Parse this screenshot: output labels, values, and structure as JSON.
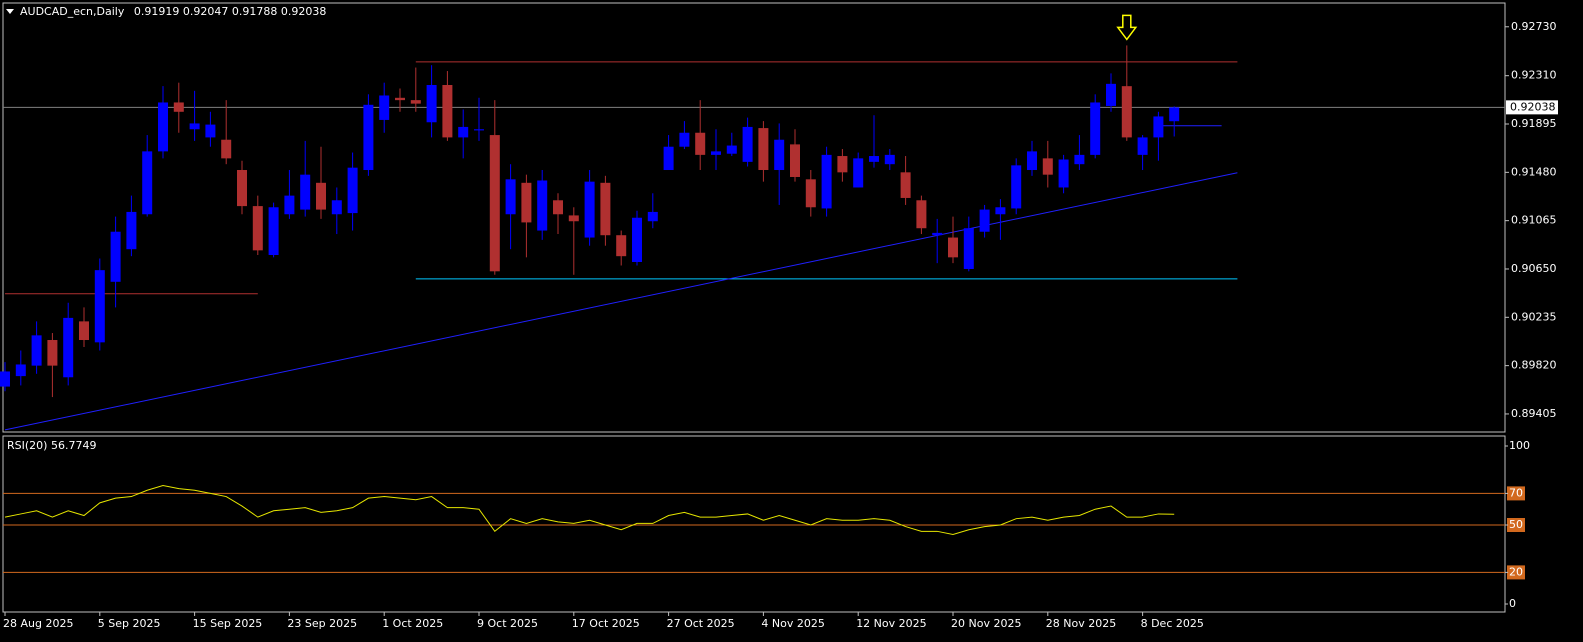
{
  "chart_data": {
    "type": "candlestick",
    "symbol": "AUDCAD_ecn,Daily",
    "categories": [
      "28 Aug 2025",
      null,
      null,
      null,
      null,
      null,
      "5 Sep 2025",
      null,
      null,
      null,
      null,
      null,
      "15 Sep 2025",
      null,
      null,
      null,
      null,
      null,
      "23 Sep 2025",
      null,
      null,
      null,
      null,
      null,
      "1 Oct 2025",
      null,
      null,
      null,
      null,
      null,
      "9 Oct 2025",
      null,
      null,
      null,
      null,
      null,
      "17 Oct 2025",
      null,
      null,
      null,
      null,
      null,
      "27 Oct 2025",
      null,
      null,
      null,
      null,
      null,
      "4 Nov 2025",
      null,
      null,
      null,
      null,
      null,
      "12 Nov 2025",
      null,
      null,
      null,
      null,
      null,
      "20 Nov 2025",
      null,
      null,
      null,
      null,
      null,
      "28 Nov 2025",
      null,
      null,
      null,
      null,
      null,
      "8 Dec 2025",
      null,
      null
    ],
    "open": [
      0.8964,
      0.8973,
      0.8982,
      0.9004,
      0.8972,
      0.902,
      0.9002,
      0.9054,
      0.9082,
      0.9112,
      0.9166,
      0.9208,
      0.9185,
      0.9178,
      0.9176,
      0.915,
      0.9119,
      0.9077,
      0.9112,
      0.9116,
      0.9139,
      0.9112,
      0.9113,
      0.915,
      0.9193,
      0.9212,
      0.921,
      0.9191,
      0.9223,
      0.9178,
      0.9184,
      0.918,
      0.9112,
      0.9139,
      0.9098,
      0.9124,
      0.9111,
      0.9092,
      0.9139,
      0.9094,
      0.9071,
      0.9106,
      0.915,
      0.917,
      0.9182,
      0.9163,
      0.9164,
      0.9157,
      0.9186,
      0.915,
      0.9172,
      0.9142,
      0.9117,
      0.9162,
      0.9135,
      0.9157,
      0.9155,
      0.9148,
      0.9124,
      0.9094,
      0.9092,
      0.9065,
      0.9097,
      0.9112,
      0.9117,
      0.915,
      0.916,
      0.9135,
      0.9155,
      0.9163,
      0.9205,
      0.9222,
      0.9163,
      0.9178,
      0.91919
    ],
    "high": [
      0.8985,
      0.8995,
      0.902,
      0.901,
      0.9036,
      0.9032,
      0.9074,
      0.911,
      0.9128,
      0.918,
      0.9222,
      0.9225,
      0.9218,
      0.92,
      0.921,
      0.9158,
      0.9128,
      0.9122,
      0.915,
      0.9175,
      0.917,
      0.9135,
      0.9165,
      0.9215,
      0.9225,
      0.922,
      0.9238,
      0.924,
      0.9235,
      0.9202,
      0.9212,
      0.921,
      0.9155,
      0.9146,
      0.915,
      0.913,
      0.9118,
      0.915,
      0.9145,
      0.9098,
      0.9115,
      0.913,
      0.918,
      0.9192,
      0.921,
      0.9185,
      0.9182,
      0.9195,
      0.9192,
      0.919,
      0.9185,
      0.915,
      0.917,
      0.9168,
      0.9165,
      0.9197,
      0.9168,
      0.9162,
      0.9128,
      0.9108,
      0.911,
      0.911,
      0.912,
      0.9125,
      0.916,
      0.9175,
      0.9175,
      0.9163,
      0.918,
      0.9215,
      0.9233,
      0.9257,
      0.918,
      0.92,
      0.92047
    ],
    "low": [
      0.896,
      0.8965,
      0.8975,
      0.8955,
      0.8965,
      0.8998,
      0.8995,
      0.9032,
      0.9076,
      0.911,
      0.916,
      0.9182,
      0.9175,
      0.917,
      0.9155,
      0.9112,
      0.9077,
      0.9075,
      0.9108,
      0.911,
      0.9108,
      0.9095,
      0.9098,
      0.9145,
      0.9182,
      0.92,
      0.92,
      0.9178,
      0.9175,
      0.916,
      0.9175,
      0.906,
      0.9082,
      0.9075,
      0.909,
      0.9095,
      0.906,
      0.9085,
      0.9085,
      0.9068,
      0.9068,
      0.91,
      0.915,
      0.9168,
      0.915,
      0.915,
      0.9162,
      0.9153,
      0.914,
      0.912,
      0.914,
      0.911,
      0.911,
      0.914,
      0.9135,
      0.9152,
      0.915,
      0.912,
      0.9095,
      0.907,
      0.907,
      0.9063,
      0.9092,
      0.909,
      0.9112,
      0.9145,
      0.9135,
      0.913,
      0.915,
      0.916,
      0.92,
      0.9175,
      0.915,
      0.9158,
      0.91788
    ],
    "close": [
      0.8977,
      0.8983,
      0.9008,
      0.8982,
      0.9023,
      0.9004,
      0.9064,
      0.9097,
      0.9114,
      0.9166,
      0.9208,
      0.92,
      0.919,
      0.9189,
      0.916,
      0.9119,
      0.9081,
      0.9118,
      0.9128,
      0.9146,
      0.9116,
      0.9124,
      0.9152,
      0.9206,
      0.9214,
      0.921,
      0.9207,
      0.9223,
      0.9178,
      0.9187,
      0.9185,
      0.9063,
      0.9142,
      0.9105,
      0.9141,
      0.9112,
      0.9106,
      0.914,
      0.9094,
      0.9076,
      0.9109,
      0.9114,
      0.917,
      0.9182,
      0.9163,
      0.9166,
      0.9171,
      0.9187,
      0.915,
      0.9176,
      0.9144,
      0.9118,
      0.9163,
      0.9148,
      0.916,
      0.9162,
      0.9163,
      0.9126,
      0.91,
      0.9096,
      0.9075,
      0.91,
      0.9116,
      0.9118,
      0.9154,
      0.9166,
      0.9146,
      0.9159,
      0.9163,
      0.9208,
      0.9224,
      0.9178,
      0.9178,
      0.9196,
      0.92038
    ],
    "up_color": "#0000ff",
    "down_color": "#b03030",
    "ylim": [
      0.8925,
      0.9296
    ],
    "yticks": [
      {
        "value": 0.9273,
        "label": "0.92730"
      },
      {
        "value": 0.9231,
        "label": "0.92310"
      },
      0.91895,
      {
        "value": 0.9148,
        "label": "0.91480"
      },
      0.91065,
      {
        "value": 0.9065,
        "label": "0.90650"
      },
      0.90235,
      {
        "value": 0.8982,
        "label": "0.89820"
      },
      0.89405
    ],
    "lines": [
      {
        "color": "#b03030",
        "values": [
          0.92429,
          0.92429
        ]
      },
      {
        "color": "#00c8ff",
        "values": [
          0.90565,
          0.90565
        ]
      },
      {
        "color": "#b03030",
        "values": [
          0.90437,
          0.90437
        ]
      },
      {
        "color": "#2020ff",
        "values": [
          0.89268,
          0.91476
        ]
      },
      {
        "color": "#2020ff",
        "values": [
          0.9188,
          0.9188
        ]
      }
    ],
    "rsi": {
      "name": "RSI(20)",
      "color": "#e6e600",
      "values": [
        55,
        57,
        59,
        55,
        59,
        56,
        64,
        67,
        68,
        72,
        75,
        73,
        72,
        70,
        68,
        62,
        55,
        59,
        60,
        61,
        58,
        59,
        61,
        67,
        68,
        67,
        66,
        68,
        61,
        61,
        60,
        46,
        54,
        51,
        54,
        52,
        51,
        53,
        50,
        47,
        51,
        51,
        56,
        58,
        55,
        55,
        56,
        57,
        53,
        56,
        53,
        50,
        54,
        53,
        53,
        54,
        53,
        49,
        46,
        46,
        44,
        47,
        49,
        50,
        54,
        55,
        53,
        55,
        56,
        60,
        62,
        55,
        55,
        57,
        56.7749
      ],
      "ylim": [
        0,
        100
      ],
      "yticks": [
        100,
        70,
        50,
        20,
        0
      ],
      "levels": [
        70,
        50,
        20
      ],
      "level_color": "#d2691e"
    }
  }
}
